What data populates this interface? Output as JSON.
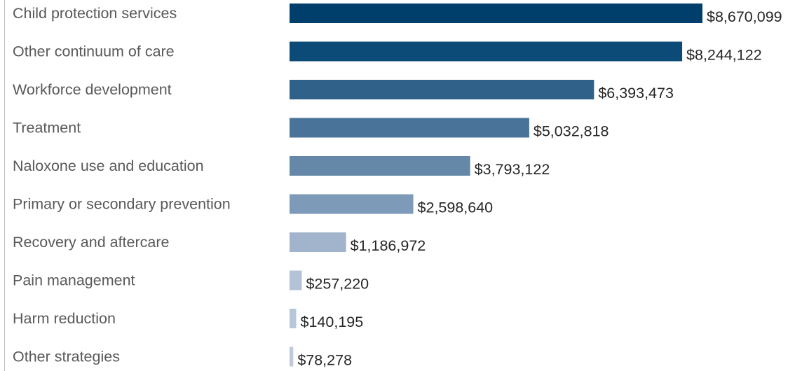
{
  "chart_data": {
    "type": "bar",
    "orientation": "horizontal",
    "title": "",
    "xlabel": "",
    "ylabel": "",
    "categories": [
      "Child protection services",
      "Other continuum of care",
      "Workforce development",
      "Treatment",
      "Naloxone use and education",
      "Primary or secondary prevention",
      "Recovery and aftercare",
      "Pain management",
      "Harm reduction",
      "Other strategies"
    ],
    "values": [
      8670099,
      8244122,
      6393473,
      5032818,
      3793122,
      2598640,
      1186972,
      257220,
      140195,
      78278
    ],
    "value_labels": [
      "$8,670,099",
      "$8,244,122",
      "$6,393,473",
      "$5,032,818",
      "$3,793,122",
      "$2,598,640",
      "$1,186,972",
      "$257,220",
      "$140,195",
      "$78,278"
    ],
    "bar_colors": [
      "#003f6b",
      "#0c4a78",
      "#2f6189",
      "#4a7399",
      "#6688a8",
      "#7d9bb8",
      "#a2b4cb",
      "#b4c2d6",
      "#b8c6d9",
      "#bfcbdc"
    ],
    "xlim": [
      0,
      8670099
    ],
    "grid": false,
    "legend": "none"
  }
}
